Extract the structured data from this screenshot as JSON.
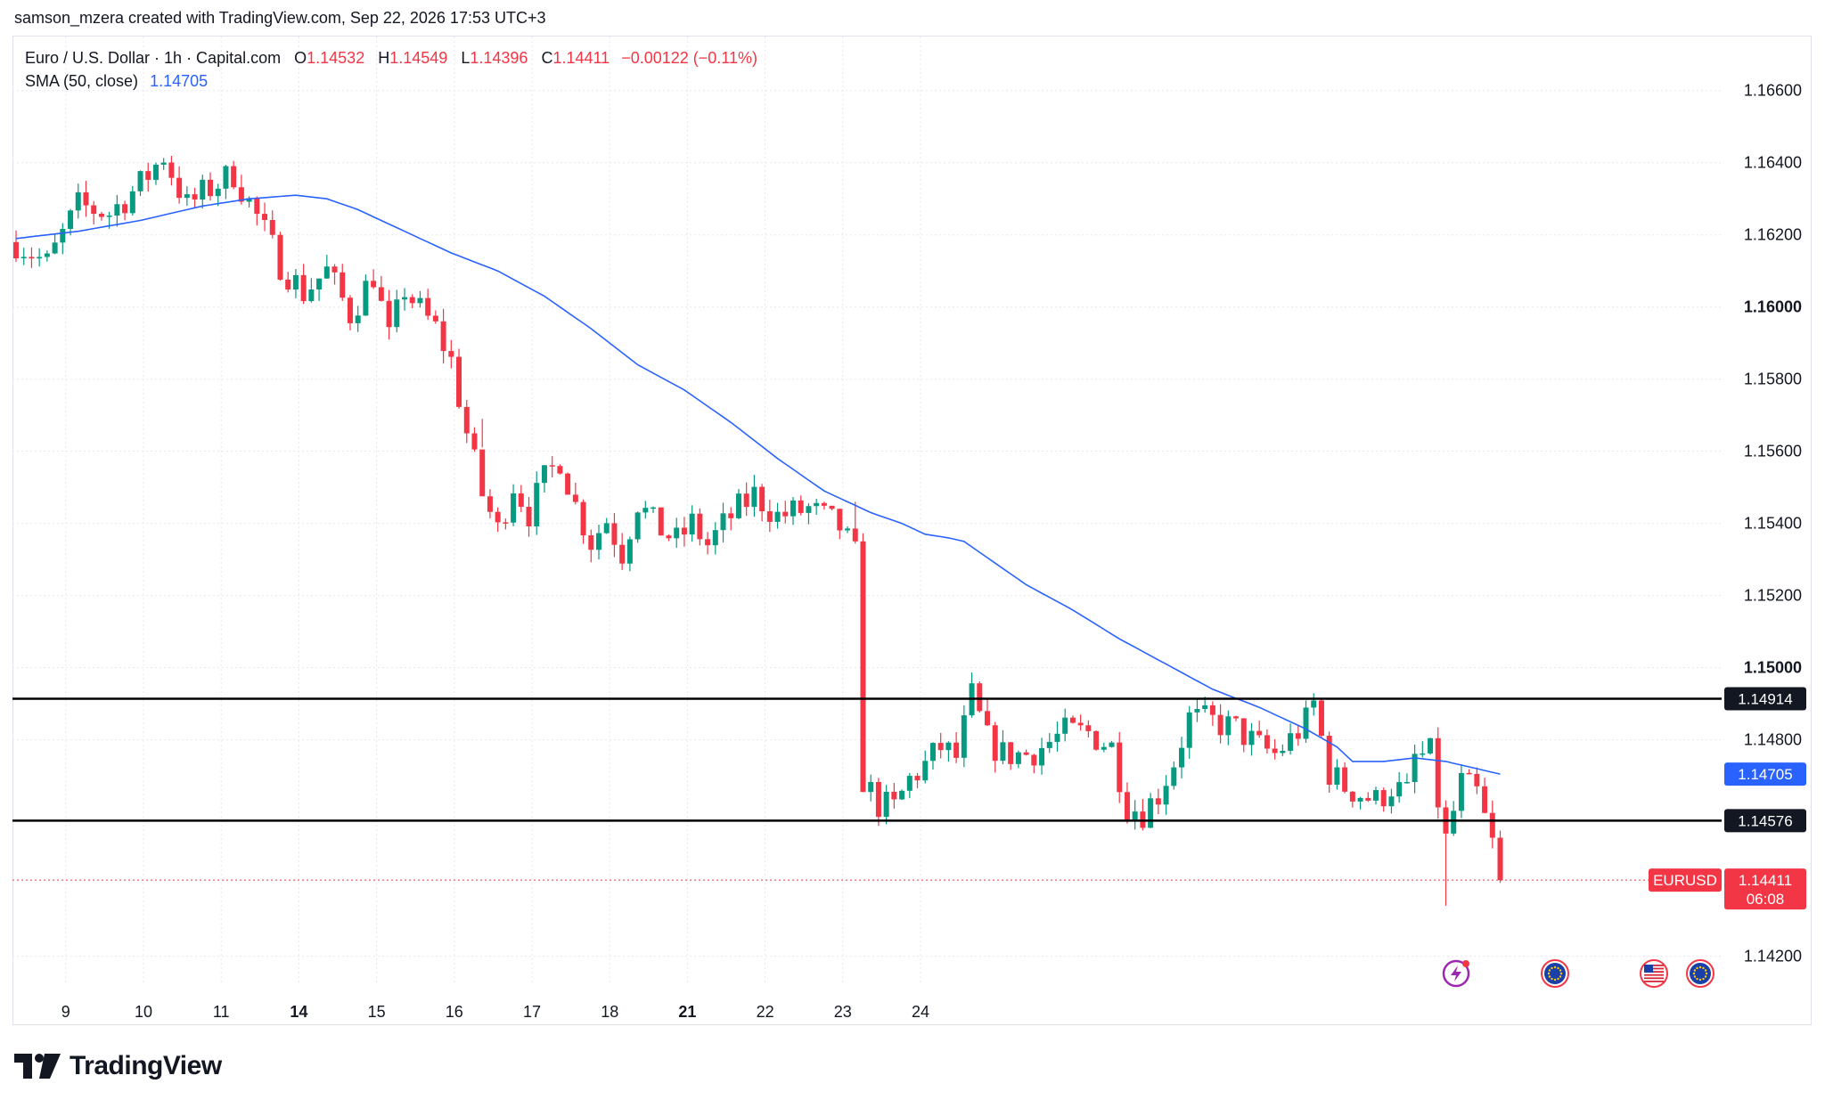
{
  "attribution": "samson_mzera created with TradingView.com, Sep 22, 2026 17:53 UTC+3",
  "legend": {
    "symbol": "Euro / U.S. Dollar · 1h · Capital.com",
    "o_label": "O",
    "o_value": "1.14532",
    "h_label": "H",
    "h_value": "1.14549",
    "l_label": "L",
    "l_value": "1.14396",
    "c_label": "C",
    "c_value": "1.14411",
    "change": "−0.00122 (−0.11%)",
    "sma_label": "SMA (50, close)",
    "sma_value": "1.14705"
  },
  "brand": "TradingView",
  "colors": {
    "up": "#089981",
    "down": "#f23645",
    "sma": "#2962ff",
    "grid": "#e6e8ef",
    "hline": "#000000"
  },
  "chart_data": {
    "type": "candlestick",
    "timeframe": "1h",
    "ylim": [
      1.1412,
      1.1675
    ],
    "y_ticks": [
      "1.16600",
      "1.16400",
      "1.16200",
      "1.16000",
      "1.15800",
      "1.15600",
      "1.15400",
      "1.15200",
      "1.15000",
      "1.14800",
      "1.14200"
    ],
    "y_ticks_bold": [
      "1.16000",
      "1.15000"
    ],
    "x_ticks": [
      {
        "label": "9",
        "slot": 6.4
      },
      {
        "label": "10",
        "slot": 16.4
      },
      {
        "label": "11",
        "slot": 26.4
      },
      {
        "label": "14",
        "slot": 36.4,
        "bold": true
      },
      {
        "label": "15",
        "slot": 46.4
      },
      {
        "label": "16",
        "slot": 56.4
      },
      {
        "label": "17",
        "slot": 66.4
      },
      {
        "label": "18",
        "slot": 76.4
      },
      {
        "label": "21",
        "slot": 86.4,
        "bold": true
      },
      {
        "label": "22",
        "slot": 96.4
      },
      {
        "label": "23",
        "slot": 106.4
      },
      {
        "label": "24",
        "slot": 116.4
      }
    ],
    "horizontal_lines": [
      {
        "value": 1.14914,
        "label": "1.14914"
      },
      {
        "value": 1.14576,
        "label": "1.14576"
      }
    ],
    "sma": {
      "label": "1.14705",
      "value": 1.14705
    },
    "last_price": {
      "symbol": "EURUSD",
      "value": 1.14411,
      "label": "1.14411",
      "countdown": "06:08"
    },
    "event_icons": [
      "lightning-icon",
      "eu-flag-icon",
      "us-flag-icon",
      "eu-flag-icon"
    ],
    "anchors": [
      [
        0,
        1.1618
      ],
      [
        4,
        1.1612
      ],
      [
        8,
        1.1628
      ],
      [
        12,
        1.1626
      ],
      [
        16,
        1.1634
      ],
      [
        19,
        1.1642
      ],
      [
        22,
        1.1628
      ],
      [
        25,
        1.1633
      ],
      [
        28,
        1.1637
      ],
      [
        31,
        1.1625
      ],
      [
        34,
        1.1612
      ],
      [
        37,
        1.1604
      ],
      [
        40,
        1.161
      ],
      [
        43,
        1.1598
      ],
      [
        46,
        1.1609
      ],
      [
        48,
        1.1591
      ],
      [
        50,
        1.1605
      ],
      [
        52,
        1.1599
      ],
      [
        54,
        1.1594
      ],
      [
        56,
        1.1585
      ],
      [
        58,
        1.1565
      ],
      [
        60,
        1.1548
      ],
      [
        62,
        1.1538
      ],
      [
        64,
        1.1551
      ],
      [
        66,
        1.1543
      ],
      [
        68,
        1.1552
      ],
      [
        70,
        1.1558
      ],
      [
        72,
        1.1545
      ],
      [
        74,
        1.1535
      ],
      [
        76,
        1.1541
      ],
      [
        78,
        1.1532
      ],
      [
        80,
        1.1546
      ],
      [
        82,
        1.154
      ],
      [
        85,
        1.1535
      ],
      [
        87,
        1.154
      ],
      [
        89,
        1.1534
      ],
      [
        92,
        1.1542
      ],
      [
        95,
        1.1548
      ],
      [
        98,
        1.1542
      ],
      [
        102,
        1.1544
      ],
      [
        106,
        1.1539
      ],
      [
        108,
        1.1531
      ],
      [
        109,
        1.1469
      ],
      [
        111,
        1.1462
      ],
      [
        113,
        1.1461
      ],
      [
        115,
        1.1469
      ],
      [
        117,
        1.1473
      ],
      [
        119,
        1.1478
      ],
      [
        121,
        1.1475
      ],
      [
        123,
        1.1492
      ],
      [
        125,
        1.148
      ],
      [
        127,
        1.1476
      ],
      [
        130,
        1.1476
      ],
      [
        132,
        1.1478
      ],
      [
        135,
        1.1482
      ],
      [
        138,
        1.1482
      ],
      [
        141,
        1.1478
      ],
      [
        143,
        1.1462
      ],
      [
        145,
        1.146
      ],
      [
        147,
        1.1465
      ],
      [
        149,
        1.1474
      ],
      [
        151,
        1.1486
      ],
      [
        154,
        1.1485
      ],
      [
        157,
        1.1483
      ],
      [
        160,
        1.1478
      ],
      [
        162,
        1.1476
      ],
      [
        164,
        1.148
      ],
      [
        166,
        1.1485
      ],
      [
        167,
        1.149
      ],
      [
        169,
        1.1471
      ],
      [
        171,
        1.1467
      ],
      [
        173,
        1.1465
      ],
      [
        175,
        1.1463
      ],
      [
        177,
        1.1467
      ],
      [
        179,
        1.1465
      ],
      [
        180,
        1.1475
      ],
      [
        182,
        1.1476
      ],
      [
        183,
        1.1463
      ],
      [
        184,
        1.1452
      ],
      [
        186,
        1.1468
      ],
      [
        188,
        1.1465
      ],
      [
        190,
        1.1451
      ],
      [
        191,
        1.1441
      ]
    ],
    "sma_anchors": [
      [
        0,
        1.1619
      ],
      [
        8,
        1.1621
      ],
      [
        16,
        1.1624
      ],
      [
        24,
        1.1628
      ],
      [
        30,
        1.163
      ],
      [
        36,
        1.1631
      ],
      [
        40,
        1.163
      ],
      [
        44,
        1.1627
      ],
      [
        48,
        1.1623
      ],
      [
        52,
        1.1619
      ],
      [
        56,
        1.1615
      ],
      [
        62,
        1.161
      ],
      [
        68,
        1.1603
      ],
      [
        74,
        1.1594
      ],
      [
        80,
        1.1584
      ],
      [
        86,
        1.1577
      ],
      [
        92,
        1.1568
      ],
      [
        98,
        1.1558
      ],
      [
        104,
        1.1549
      ],
      [
        110,
        1.1543
      ],
      [
        114,
        1.154
      ],
      [
        117,
        1.1537
      ],
      [
        120,
        1.1536
      ],
      [
        122,
        1.1535
      ],
      [
        126,
        1.1529
      ],
      [
        130,
        1.1523
      ],
      [
        136,
        1.1516
      ],
      [
        142,
        1.1508
      ],
      [
        148,
        1.1501
      ],
      [
        154,
        1.1494
      ],
      [
        160,
        1.1489
      ],
      [
        166,
        1.1483
      ],
      [
        170,
        1.1478
      ],
      [
        172,
        1.1474
      ],
      [
        176,
        1.1474
      ],
      [
        180,
        1.1475
      ],
      [
        184,
        1.1474
      ],
      [
        188,
        1.1472
      ],
      [
        191,
        1.14705
      ]
    ],
    "special_wicks": [
      {
        "i": 60,
        "low": 1.1569
      },
      {
        "i": 108,
        "high": 1.1546
      },
      {
        "i": 184,
        "low": 1.1434
      }
    ]
  }
}
